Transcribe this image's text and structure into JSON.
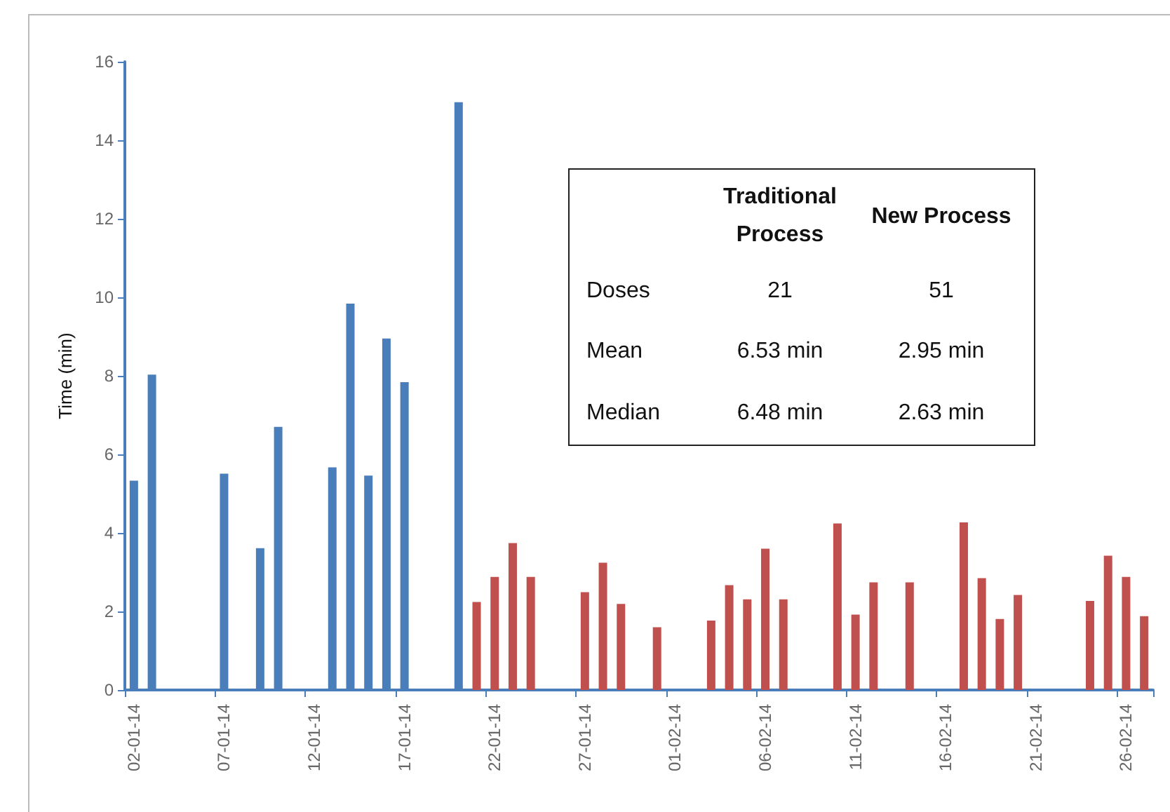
{
  "chart_data": {
    "type": "bar",
    "ylabel": "Time (min)",
    "ylim": [
      0,
      16
    ],
    "yticks": [
      0,
      2,
      4,
      6,
      8,
      10,
      12,
      14,
      16
    ],
    "grid": false,
    "categories": [
      "02-01-14",
      null,
      null,
      null,
      null,
      "07-01-14",
      null,
      null,
      null,
      null,
      "12-01-14",
      null,
      null,
      null,
      null,
      "17-01-14",
      null,
      null,
      null,
      null,
      "22-01-14",
      null,
      null,
      null,
      null,
      "27-01-14",
      null,
      null,
      null,
      null,
      "01-02-14",
      null,
      null,
      null,
      null,
      "06-02-14",
      null,
      null,
      null,
      null,
      "11-02-14",
      null,
      null,
      null,
      null,
      "16-02-14",
      null,
      null,
      null,
      null,
      "21-02-14",
      null,
      null,
      null,
      null,
      "26-02-14",
      null
    ],
    "series": [
      {
        "color": "#4a7ebb",
        "values": [
          5.33,
          8.03,
          null,
          null,
          null,
          5.51,
          null,
          3.61,
          6.7,
          null,
          null,
          5.67,
          9.84,
          5.46,
          8.95,
          7.84,
          null,
          null,
          14.97,
          null,
          null,
          null,
          null,
          null,
          null,
          null,
          null,
          null,
          null,
          null,
          null,
          null,
          null,
          null,
          null,
          null,
          null,
          null,
          null,
          null,
          null,
          null,
          null,
          null,
          null,
          null,
          null,
          null,
          null,
          null,
          null,
          null,
          null,
          null,
          null,
          null,
          null
        ]
      },
      {
        "color": "#c0504d",
        "values": [
          null,
          null,
          null,
          null,
          null,
          null,
          null,
          null,
          null,
          null,
          null,
          null,
          null,
          null,
          null,
          null,
          null,
          null,
          null,
          2.24,
          2.88,
          3.74,
          2.88,
          null,
          null,
          2.49,
          3.24,
          2.19,
          null,
          1.6,
          null,
          null,
          1.77,
          2.67,
          2.31,
          3.6,
          2.31,
          null,
          null,
          4.24,
          1.92,
          2.74,
          null,
          2.74,
          null,
          null,
          4.27,
          2.85,
          1.81,
          2.42,
          null,
          null,
          null,
          2.27,
          3.42,
          2.88,
          1.88
        ]
      }
    ],
    "annotations": [
      "Traditional Process",
      "New Process",
      "Doses",
      "21",
      "51",
      "Mean",
      "6.53 min",
      "2.95 min",
      "Median",
      "6.48 min",
      "2.63 min"
    ]
  }
}
